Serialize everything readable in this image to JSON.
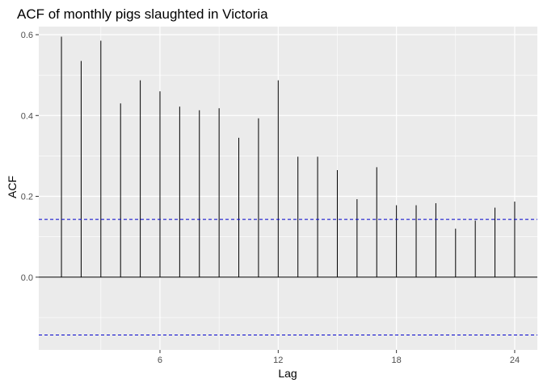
{
  "chart_data": {
    "type": "bar",
    "title": "ACF of monthly pigs slaughted in Victoria",
    "xlabel": "Lag",
    "ylabel": "ACF",
    "x": [
      1,
      2,
      3,
      4,
      5,
      6,
      7,
      8,
      9,
      10,
      11,
      12,
      13,
      14,
      15,
      16,
      17,
      18,
      19,
      20,
      21,
      22,
      23,
      24
    ],
    "values": [
      0.595,
      0.535,
      0.585,
      0.43,
      0.487,
      0.46,
      0.422,
      0.413,
      0.418,
      0.345,
      0.393,
      0.487,
      0.298,
      0.298,
      0.265,
      0.193,
      0.272,
      0.178,
      0.178,
      0.183,
      0.12,
      0.14,
      0.172,
      0.187
    ],
    "xlim": [
      -0.15,
      25.15
    ],
    "ylim": [
      -0.18,
      0.62
    ],
    "xticks": [
      6,
      12,
      18,
      24
    ],
    "yticks": [
      0.0,
      0.2,
      0.4,
      0.6
    ],
    "ytick_labels": [
      "0.0",
      "0.2",
      "0.4",
      "0.6"
    ],
    "confidence_bound": 0.143,
    "grid": true,
    "legend": "none",
    "colors": {
      "panel": "#ebebeb",
      "grid": "#ffffff",
      "bars": "#000000",
      "zero_line": "#000000",
      "bounds": "#0000cc"
    }
  }
}
